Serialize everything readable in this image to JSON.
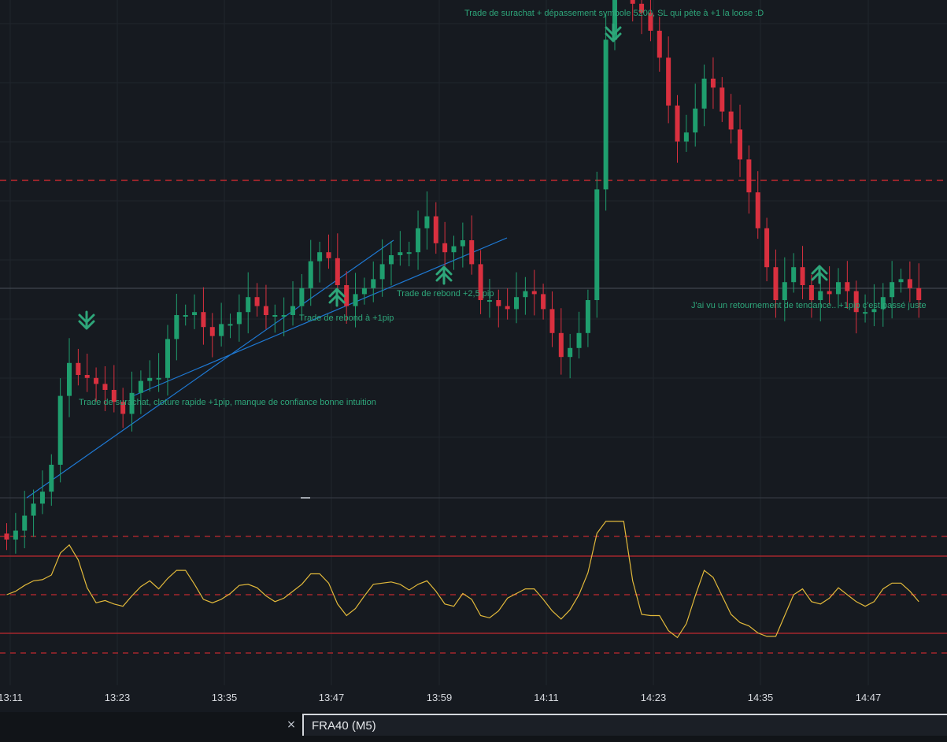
{
  "chart": {
    "symbol_tab": "FRA40 (M5)",
    "close_symbol": "×",
    "time_labels": [
      "13:11",
      "13:23",
      "13:35",
      "13:47",
      "13:59",
      "14:11",
      "14:23",
      "14:35",
      "14:47"
    ],
    "annotations": [
      "Trade de surachat + dépassement symbole 5200, SL qui pète à +1 la loose :D",
      "Trade de surachat, cloture rapide +1pip, manque de confiance bonne intuition",
      "Trade de rebond à +1pip",
      "Trade de rebond +2,5 pip",
      "J'ai vu un retournement de tendance.. +1pip c'est passé juste"
    ],
    "icons": [
      "arrow-down-icon",
      "arrow-down-icon",
      "arrow-up-icon",
      "arrow-up-icon",
      "arrow-up-icon"
    ],
    "colors": {
      "background": "#161a20",
      "bull": "#1f9e6e",
      "bear": "#d9303f",
      "annotation": "#2ea67a",
      "trendline": "#1e78d2",
      "oscillator": "#e2b93b",
      "level": "#c0292f"
    }
  },
  "chart_data": {
    "type": "candlestick",
    "timeframe": "M5",
    "candle_close": [
      5188.0,
      5188.3,
      5188.8,
      5189.2,
      5189.6,
      5190.5,
      5192.8,
      5193.9,
      5193.5,
      5193.4,
      5193.2,
      5193.0,
      5192.6,
      5192.2,
      5192.9,
      5193.3,
      5193.4,
      5193.4,
      5194.7,
      5195.5,
      5195.5,
      5195.6,
      5195.1,
      5194.8,
      5195.2,
      5195.2,
      5195.6,
      5196.1,
      5195.8,
      5195.5,
      5195.5,
      5195.5,
      5195.8,
      5196.4,
      5197.3,
      5197.6,
      5197.4,
      5196.5,
      5195.8,
      5196.2,
      5196.4,
      5196.7,
      5197.2,
      5197.5,
      5197.6,
      5197.6,
      5198.4,
      5198.8,
      5197.9,
      5197.6,
      5197.8,
      5198.0,
      5197.2,
      5196.0,
      5196.0,
      5195.8,
      5195.7,
      5196.1,
      5196.3,
      5196.2,
      5195.7,
      5194.9,
      5194.1,
      5194.4,
      5194.9,
      5196.0,
      5199.7,
      5204.7,
      5207.3,
      5206.8,
      5205.9,
      5205.6,
      5205.0,
      5204.1,
      5202.5,
      5201.3,
      5201.6,
      5202.4,
      5203.4,
      5203.1,
      5202.3,
      5201.7,
      5200.7,
      5199.6,
      5198.4,
      5197.1,
      5196.0,
      5196.6,
      5197.1,
      5196.5,
      5196.0,
      5196.3,
      5196.2,
      5196.6,
      5196.3,
      5195.6,
      5195.6,
      5195.7,
      5196.1,
      5196.6,
      5196.7,
      5196.4,
      5196.0
    ],
    "levels": [
      5200.0,
      5196.0
    ],
    "oscillator": {
      "levels_solid": [
        70,
        30
      ],
      "levels_dashed": [
        80,
        50,
        20
      ]
    },
    "x_labels": [
      "13:11",
      "13:23",
      "13:35",
      "13:47",
      "13:59",
      "14:11",
      "14:23",
      "14:35",
      "14:47"
    ]
  }
}
